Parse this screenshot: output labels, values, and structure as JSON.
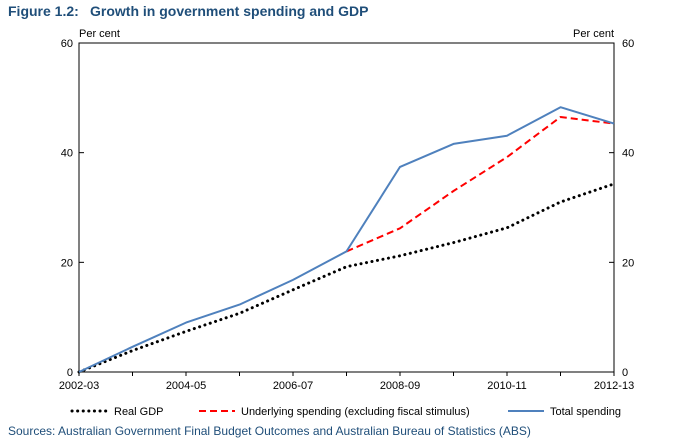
{
  "figure": {
    "number": "Figure 1.2:",
    "title": "Growth in government spending and GDP",
    "source": "Sources: Australian Government Final Budget Outcomes and Australian Bureau of Statistics (ABS)"
  },
  "chart_data": {
    "type": "line",
    "x": [
      "2002-03",
      "2003-04",
      "2004-05",
      "2005-06",
      "2006-07",
      "2007-08",
      "2008-09",
      "2009-10",
      "2010-11",
      "2011-12",
      "2012-13"
    ],
    "x_tick_labels": [
      "2002-03",
      "2004-05",
      "2006-07",
      "2008-09",
      "2010-11",
      "2012-13"
    ],
    "ylim": [
      0,
      60
    ],
    "y_ticks": [
      0,
      20,
      40,
      60
    ],
    "ylabel_left": "Per cent",
    "ylabel_right": "Per cent",
    "grid": false,
    "legend_position": "bottom",
    "series": [
      {
        "name": "Real GDP",
        "style": "dotted",
        "color": "#000000",
        "values": [
          0,
          3.9,
          7.4,
          10.7,
          15.0,
          19.2,
          21.2,
          23.6,
          26.3,
          31.0,
          34.3
        ]
      },
      {
        "name": "Underlying spending (excluding fiscal stimulus)",
        "style": "dashed",
        "color": "#ff0000",
        "values": [
          null,
          null,
          null,
          null,
          null,
          22.0,
          26.2,
          33.0,
          39.2,
          46.5,
          45.3
        ]
      },
      {
        "name": "Total spending",
        "style": "solid",
        "color": "#4f81bd",
        "values": [
          0,
          4.6,
          9.0,
          12.3,
          16.8,
          22.0,
          37.4,
          41.6,
          43.1,
          48.3,
          45.3
        ]
      }
    ]
  }
}
